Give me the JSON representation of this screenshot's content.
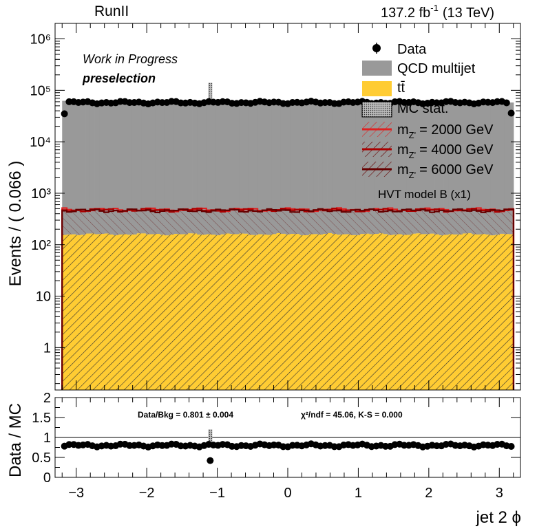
{
  "header": {
    "left": "RunII",
    "lumi": "137.2 fb",
    "lumi_sup": "-1",
    "energy": "(13 TeV)"
  },
  "labels": {
    "wip": "Work in Progress",
    "selection": "preselection",
    "model": "HVT model B (x1)"
  },
  "legend": {
    "data": "Data",
    "qcd": "QCD multijet",
    "ttbar": "tt̄",
    "mcstat": "MC stat.",
    "z1_m": "m",
    "z1_sub": "Z'",
    "z1_val": "= 2000 GeV",
    "z2_m": "m",
    "z2_sub": "Z'",
    "z2_val": "= 4000 GeV",
    "z3_m": "m",
    "z3_sub": "Z'",
    "z3_val": "= 6000 GeV"
  },
  "ratio_text": {
    "databkg": "Data/Bkg = 0.801 ± 0.004",
    "chi2": "χ²/ndf = 45.06,   K-S = 0.000"
  },
  "colors": {
    "qcd": "#999999",
    "ttbar": "#ffcc33",
    "z2000": "#dd2222",
    "z4000": "#aa0000",
    "z6000": "#660000",
    "data": "#000000"
  },
  "chart_data": [
    {
      "type": "bar",
      "title": "",
      "xlabel": "jet 2 ϕ",
      "ylabel": "Events / ( 0.066 )",
      "log_y": true,
      "xlim": [
        -3.3,
        3.3
      ],
      "ylim": [
        0.15,
        2000000
      ],
      "x_ticks": [
        -3,
        -2,
        -1,
        0,
        1,
        2,
        3
      ],
      "y_ticks": [
        {
          "value": 1,
          "label": "1"
        },
        {
          "value": 10,
          "label": "10"
        },
        {
          "value": 100,
          "label": "10²"
        },
        {
          "value": 1000,
          "label": "10³"
        },
        {
          "value": 10000,
          "label": "10⁴"
        },
        {
          "value": 100000,
          "label": "10⁵"
        },
        {
          "value": 1000000,
          "label": "10⁶"
        }
      ],
      "bin_edges": {
        "start": -3.2,
        "width": 0.066,
        "count": 97
      },
      "series": [
        {
          "name": "Data",
          "style": "points",
          "typical": 58000,
          "edge_bins": {
            "first": 35000,
            "last": 36000
          },
          "outlier": {
            "x": -1.1,
            "value": 100000
          }
        },
        {
          "name": "QCD multijet",
          "style": "stacked",
          "typical": 60000
        },
        {
          "name": "tt̄",
          "style": "stacked",
          "typical": 160
        },
        {
          "name": "m_Z' = 2000 GeV",
          "style": "line",
          "typical": 480
        },
        {
          "name": "m_Z' = 4000 GeV",
          "style": "line",
          "typical": 470
        },
        {
          "name": "m_Z' = 6000 GeV",
          "style": "line",
          "typical": 460
        }
      ]
    },
    {
      "type": "scatter",
      "title": "",
      "xlabel": "jet 2 ϕ",
      "ylabel": "Data / MC",
      "xlim": [
        -3.3,
        3.3
      ],
      "ylim": [
        0,
        2
      ],
      "y_ticks": [
        {
          "value": 0,
          "label": "0"
        },
        {
          "value": 0.5,
          "label": "0.5"
        },
        {
          "value": 1,
          "label": "1"
        },
        {
          "value": 1.5,
          "label": "1.5"
        },
        {
          "value": 2,
          "label": "2"
        }
      ],
      "reference_line": 1,
      "typical": 0.8,
      "outlier": {
        "x": -1.1,
        "value": 0.42
      }
    }
  ]
}
